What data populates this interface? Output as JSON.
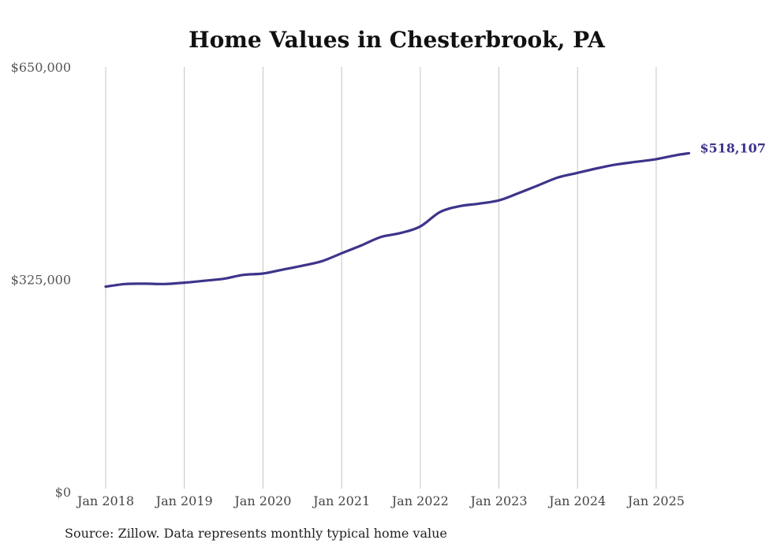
{
  "source_note": "Source: Zillow. Data represents monthly typical home value",
  "colors": {
    "line": "#3d348b",
    "grid": "#c4c4c4"
  },
  "chart_data": {
    "type": "line",
    "title": "Home Values in Chesterbrook, PA",
    "xlabel": "",
    "ylabel": "",
    "ylim": [
      0,
      650000
    ],
    "yticks": [
      {
        "value": 0,
        "label": "$0"
      },
      {
        "value": 325000,
        "label": "$325,000"
      },
      {
        "value": 650000,
        "label": "$650,000"
      }
    ],
    "xticks": [
      {
        "value": "2018-01",
        "label": "Jan 2018"
      },
      {
        "value": "2019-01",
        "label": "Jan 2019"
      },
      {
        "value": "2020-01",
        "label": "Jan 2020"
      },
      {
        "value": "2021-01",
        "label": "Jan 2021"
      },
      {
        "value": "2022-01",
        "label": "Jan 2022"
      },
      {
        "value": "2023-01",
        "label": "Jan 2023"
      },
      {
        "value": "2024-01",
        "label": "Jan 2024"
      },
      {
        "value": "2025-01",
        "label": "Jan 2025"
      }
    ],
    "grid": {
      "vertical": true,
      "horizontal": false
    },
    "legend": "none",
    "end_label": "$518,107",
    "series": [
      {
        "points": [
          [
            "2018-01",
            314000
          ],
          [
            "2018-04",
            318000
          ],
          [
            "2018-07",
            318500
          ],
          [
            "2018-10",
            318000
          ],
          [
            "2019-01",
            320000
          ],
          [
            "2019-04",
            323000
          ],
          [
            "2019-07",
            326000
          ],
          [
            "2019-10",
            332000
          ],
          [
            "2020-01",
            334000
          ],
          [
            "2020-04",
            340000
          ],
          [
            "2020-07",
            346000
          ],
          [
            "2020-10",
            353000
          ],
          [
            "2021-01",
            365000
          ],
          [
            "2021-04",
            377000
          ],
          [
            "2021-07",
            390000
          ],
          [
            "2021-10",
            396000
          ],
          [
            "2022-01",
            406000
          ],
          [
            "2022-04",
            428000
          ],
          [
            "2022-07",
            437000
          ],
          [
            "2022-10",
            441000
          ],
          [
            "2023-01",
            446000
          ],
          [
            "2023-04",
            457000
          ],
          [
            "2023-07",
            469000
          ],
          [
            "2023-10",
            481000
          ],
          [
            "2024-01",
            488000
          ],
          [
            "2024-04",
            495000
          ],
          [
            "2024-07",
            501000
          ],
          [
            "2024-10",
            505000
          ],
          [
            "2025-01",
            509000
          ],
          [
            "2025-04",
            515000
          ],
          [
            "2025-06",
            518107
          ]
        ]
      }
    ]
  }
}
